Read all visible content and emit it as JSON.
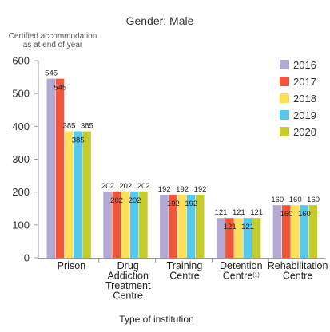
{
  "chart_data": {
    "type": "bar",
    "title": "Gender: Male",
    "ylabel_line1": "Certified accommodation",
    "ylabel_line2": "as at end of year",
    "xlabel": "Type of institution",
    "ylim": [
      0,
      600
    ],
    "yticks": [
      0,
      100,
      200,
      300,
      400,
      500,
      600
    ],
    "categories": [
      "Prison",
      "Drug Addiction Treatment Centre",
      "Training Centre",
      "Detention Centre",
      "Rehabilitation Centre"
    ],
    "category_lines": [
      [
        "Prison"
      ],
      [
        "Drug",
        "Addiction",
        "Treatment",
        "Centre"
      ],
      [
        "Training",
        "Centre"
      ],
      [
        "Detention",
        "Centre"
      ],
      [
        "Rehabilitation",
        "Centre"
      ]
    ],
    "category_footnotes": [
      "",
      "",
      "",
      "(1)",
      ""
    ],
    "legend_position": "right",
    "series": [
      {
        "name": "2016",
        "color": "#b3a9d3",
        "values": [
          545,
          202,
          192,
          121,
          160
        ]
      },
      {
        "name": "2017",
        "color": "#f0573a",
        "values": [
          545,
          202,
          192,
          121,
          160
        ]
      },
      {
        "name": "2018",
        "color": "#fde05a",
        "values": [
          385,
          202,
          192,
          121,
          160
        ]
      },
      {
        "name": "2019",
        "color": "#55c8ec",
        "values": [
          385,
          202,
          192,
          121,
          160
        ]
      },
      {
        "name": "2020",
        "color": "#c4cb2c",
        "values": [
          385,
          202,
          192,
          121,
          160
        ]
      }
    ]
  }
}
